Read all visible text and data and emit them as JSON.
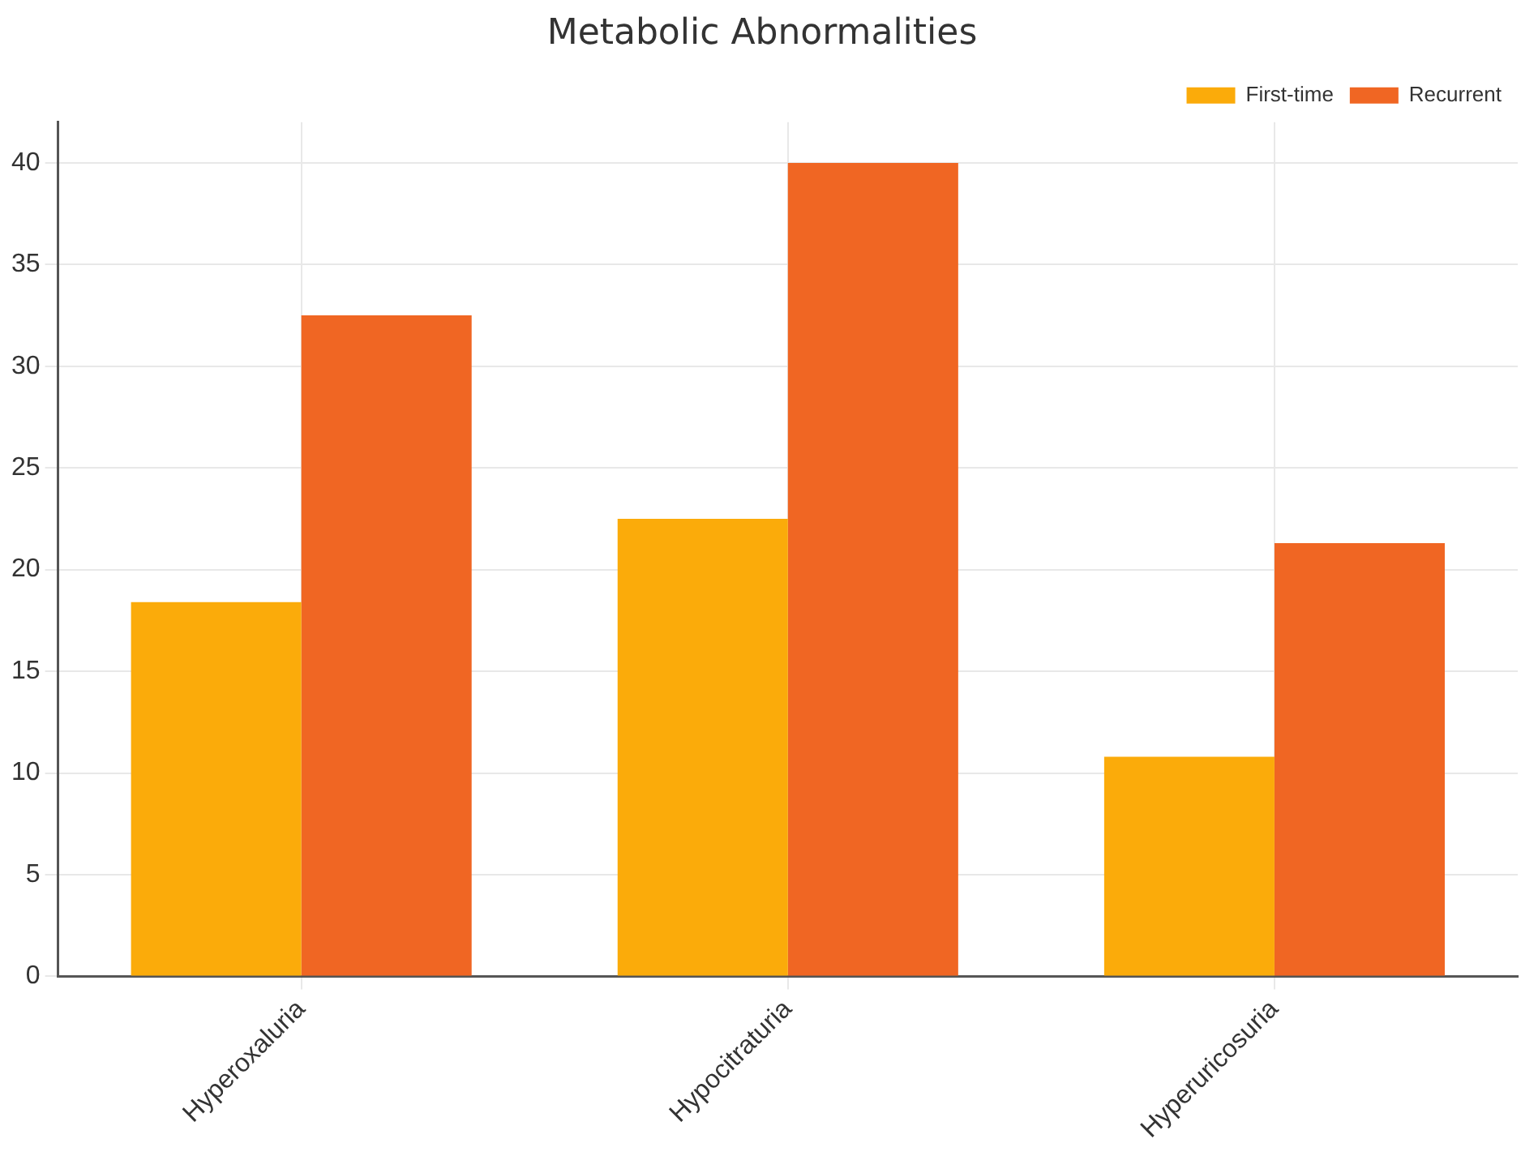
{
  "chart_data": {
    "type": "bar",
    "title": "Metabolic Abnormalities",
    "categories": [
      "Hyperoxaluria",
      "Hypocitraturia",
      "Hyperuricosuria"
    ],
    "series": [
      {
        "name": "First-time",
        "color": "#fbab0a",
        "values": [
          18.4,
          22.5,
          10.8
        ]
      },
      {
        "name": "Recurrent",
        "color": "#f06623",
        "values": [
          32.5,
          40,
          21.3
        ]
      }
    ],
    "ylim": [
      0,
      42
    ],
    "yticks": [
      0,
      5,
      10,
      15,
      20,
      25,
      30,
      35,
      40
    ],
    "grid": true,
    "legend": "top right"
  }
}
